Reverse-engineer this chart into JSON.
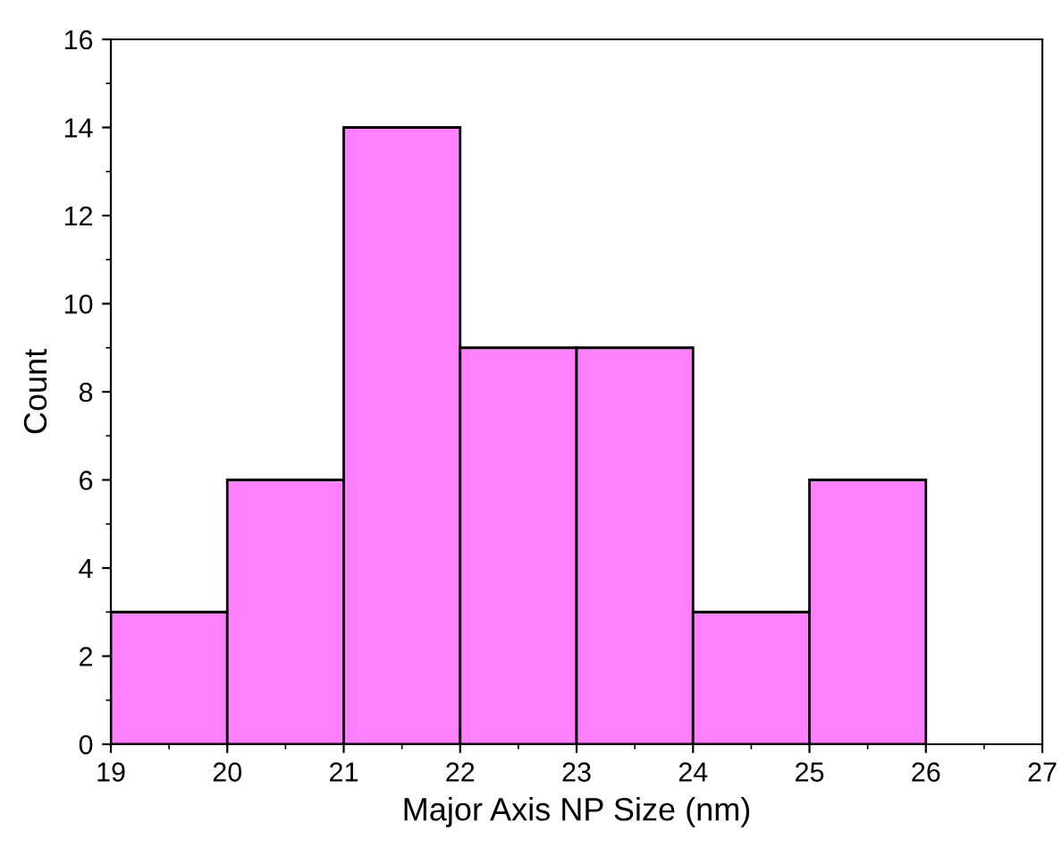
{
  "chart_data": {
    "type": "histogram",
    "xlabel": "Major Axis NP Size (nm)",
    "ylabel": "Count",
    "bins": [
      19,
      20,
      21,
      22,
      23,
      24,
      25,
      26
    ],
    "values": [
      3,
      6,
      14,
      9,
      9,
      3,
      6
    ],
    "color": "#ff80ff",
    "xlim": [
      19,
      27
    ],
    "xticks": [
      19,
      20,
      21,
      22,
      23,
      24,
      25,
      26,
      27
    ],
    "ylim": [
      0,
      16
    ],
    "yticks": [
      0,
      2,
      4,
      6,
      8,
      10,
      12,
      14,
      16
    ],
    "grid": false,
    "legend": false
  }
}
